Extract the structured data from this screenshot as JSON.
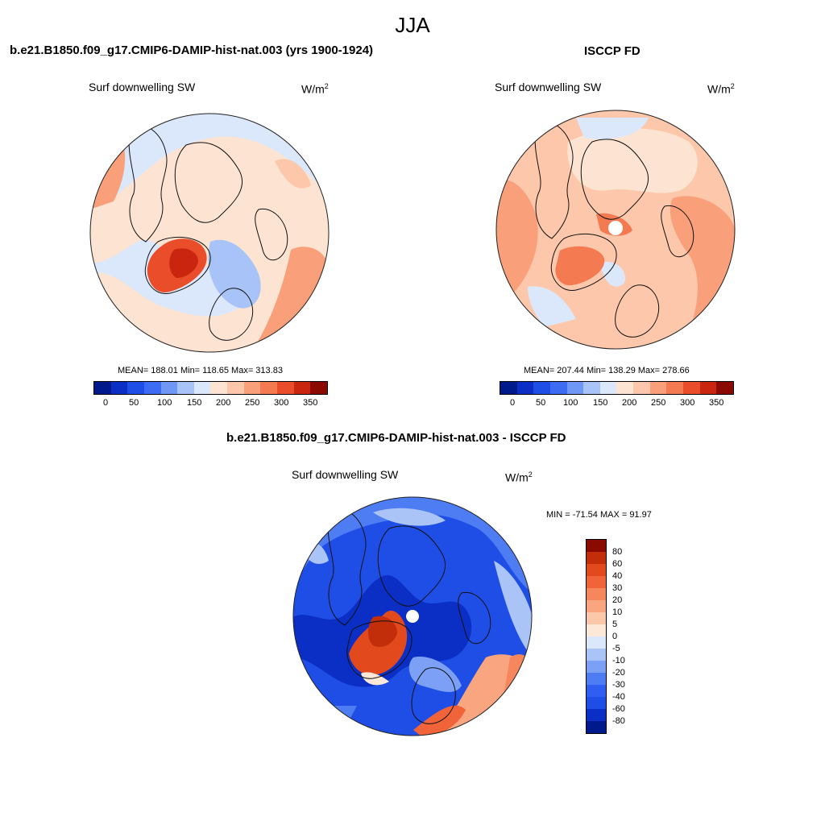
{
  "figure": {
    "title": "JJA"
  },
  "colors": {
    "abs_scale": [
      "#001a8c",
      "#0b2fc4",
      "#1e4ee6",
      "#3d6cf2",
      "#6f97f5",
      "#a7c3f7",
      "#dbe8fb",
      "#fde4d2",
      "#fcc7aa",
      "#f9a07a",
      "#f47a52",
      "#e94d2a",
      "#c9250f",
      "#8b0a00"
    ],
    "diff_scale": [
      "#001a8c",
      "#0b2fc4",
      "#1e4ee6",
      "#2f5ef0",
      "#4e7cf3",
      "#7ba0f5",
      "#aac4f7",
      "#dbe8fb",
      "#fde8d8",
      "#fcc8aa",
      "#f9a680",
      "#f6865c",
      "#f1643a",
      "#e24a1d",
      "#c22d0a",
      "#8b0a00"
    ]
  },
  "panels": [
    {
      "title": "b.e21.B1850.f09_g17.CMIP6-DAMIP-hist-nat.003 (yrs 1900-1924)",
      "variable": "Surf downwelling SW",
      "units_base": "W/m",
      "units_exp": "2",
      "stats": "MEAN= 188.01  Min= 118.65  Max= 313.83",
      "colorbar_ticks": [
        "0",
        "50",
        "100",
        "150",
        "200",
        "250",
        "300",
        "350"
      ]
    },
    {
      "title": "ISCCP FD",
      "variable": "Surf downwelling SW",
      "units_base": "W/m",
      "units_exp": "2",
      "stats": "MEAN= 207.44  Min= 138.29  Max= 278.66",
      "colorbar_ticks": [
        "0",
        "50",
        "100",
        "150",
        "200",
        "250",
        "300",
        "350"
      ]
    },
    {
      "title": "b.e21.B1850.f09_g17.CMIP6-DAMIP-hist-nat.003 - ISCCP FD",
      "variable": "Surf downwelling SW",
      "units_base": "W/m",
      "units_exp": "2",
      "stats": "MIN = -71.54 MAX =  91.97",
      "colorbar_ticks": [
        "80",
        "60",
        "40",
        "30",
        "20",
        "10",
        "5",
        "0",
        "-5",
        "-10",
        "-20",
        "-30",
        "-40",
        "-60",
        "-80"
      ]
    }
  ]
}
